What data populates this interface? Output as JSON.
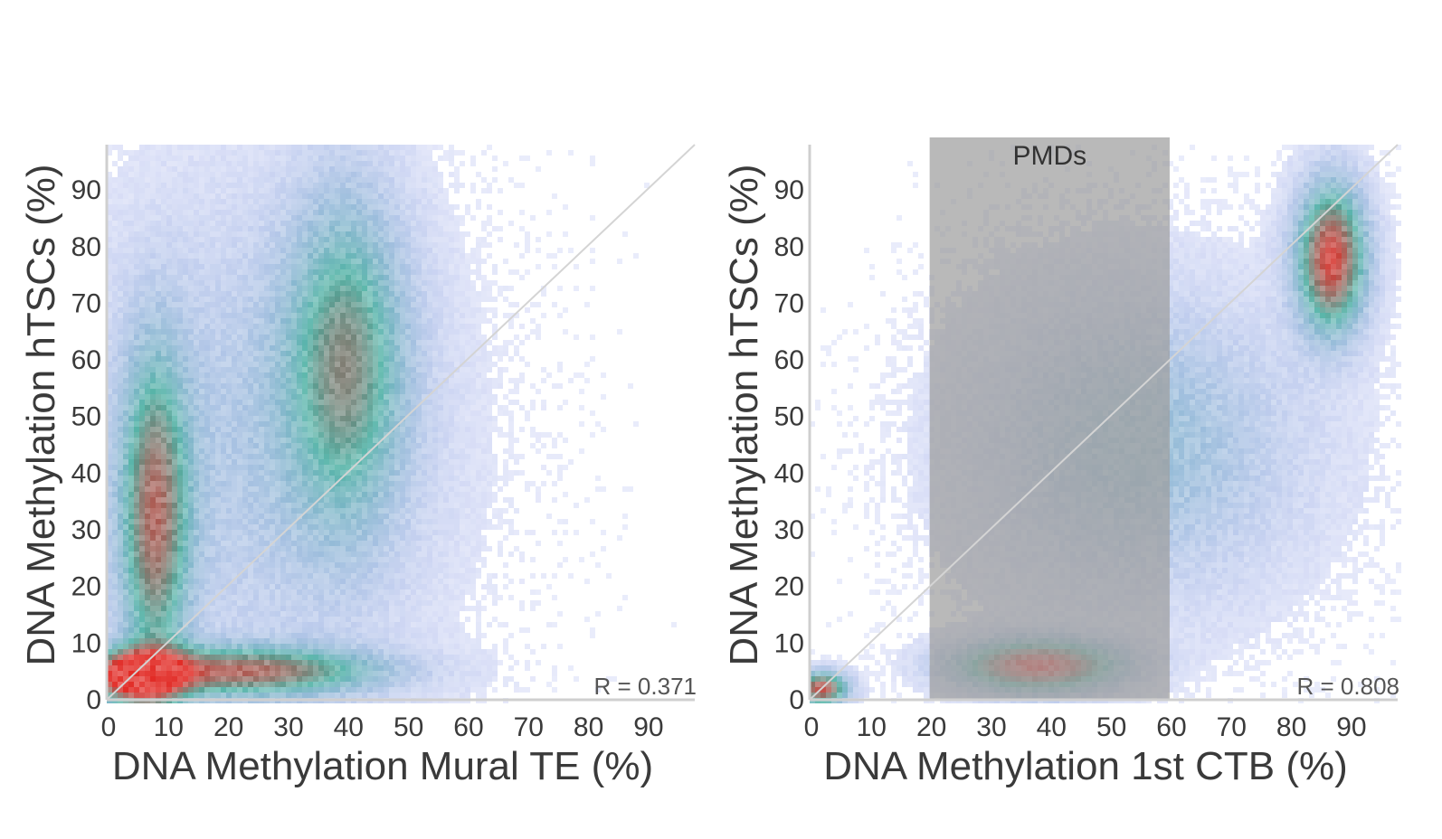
{
  "colors": {
    "density_low": "#3a4fd8",
    "density_mid": "#3aa89a",
    "density_high": "#e0201a",
    "axis": "#cfcfcf",
    "band": "#9e9e9e",
    "diagonal": "#d4d4d4"
  },
  "chart_data": [
    {
      "type": "scatter",
      "subtype": "density-heatmap",
      "xlabel": "DNA Methylation Mural TE (%)",
      "ylabel": "DNA Methylation hTSCs (%)",
      "x_ticks": [
        "0",
        "10",
        "20",
        "30",
        "40",
        "50",
        "60",
        "70",
        "80",
        "90"
      ],
      "y_ticks": [
        "0",
        "10",
        "20",
        "30",
        "40",
        "50",
        "60",
        "70",
        "80",
        "90"
      ],
      "xlim": [
        0,
        98
      ],
      "ylim": [
        0,
        98
      ],
      "diagonal": true,
      "annotation": "R = 0.371",
      "clusters": [
        {
          "x": 5,
          "y": 4,
          "sx": 5,
          "sy": 3,
          "peak": 1.0
        },
        {
          "x": 22,
          "y": 5,
          "sx": 16,
          "sy": 3,
          "peak": 0.75
        },
        {
          "x": 8,
          "y": 32,
          "sx": 4,
          "sy": 20,
          "peak": 0.7
        },
        {
          "x": 40,
          "y": 60,
          "sx": 7,
          "sy": 20,
          "peak": 0.55
        },
        {
          "x": 25,
          "y": 45,
          "sx": 20,
          "sy": 30,
          "peak": 0.2
        }
      ]
    },
    {
      "type": "scatter",
      "subtype": "density-heatmap",
      "xlabel": "DNA Methylation 1st CTB (%)",
      "ylabel": "DNA Methylation hTSCs (%)",
      "x_ticks": [
        "0",
        "10",
        "20",
        "30",
        "40",
        "50",
        "60",
        "70",
        "80",
        "90"
      ],
      "y_ticks": [
        "0",
        "10",
        "20",
        "30",
        "40",
        "50",
        "60",
        "70",
        "80",
        "90"
      ],
      "xlim": [
        0,
        98
      ],
      "ylim": [
        0,
        98
      ],
      "diagonal": true,
      "annotation": "R = 0.808",
      "band": {
        "label": "PMDs",
        "x_range": [
          20,
          60
        ]
      },
      "clusters": [
        {
          "x": 38,
          "y": 6,
          "sx": 9,
          "sy": 3,
          "peak": 1.0
        },
        {
          "x": 2,
          "y": 2,
          "sx": 3,
          "sy": 2,
          "peak": 0.9
        },
        {
          "x": 87,
          "y": 78,
          "sx": 4,
          "sy": 9,
          "peak": 0.95
        },
        {
          "x": 55,
          "y": 45,
          "sx": 18,
          "sy": 18,
          "peak": 0.3
        }
      ]
    }
  ]
}
